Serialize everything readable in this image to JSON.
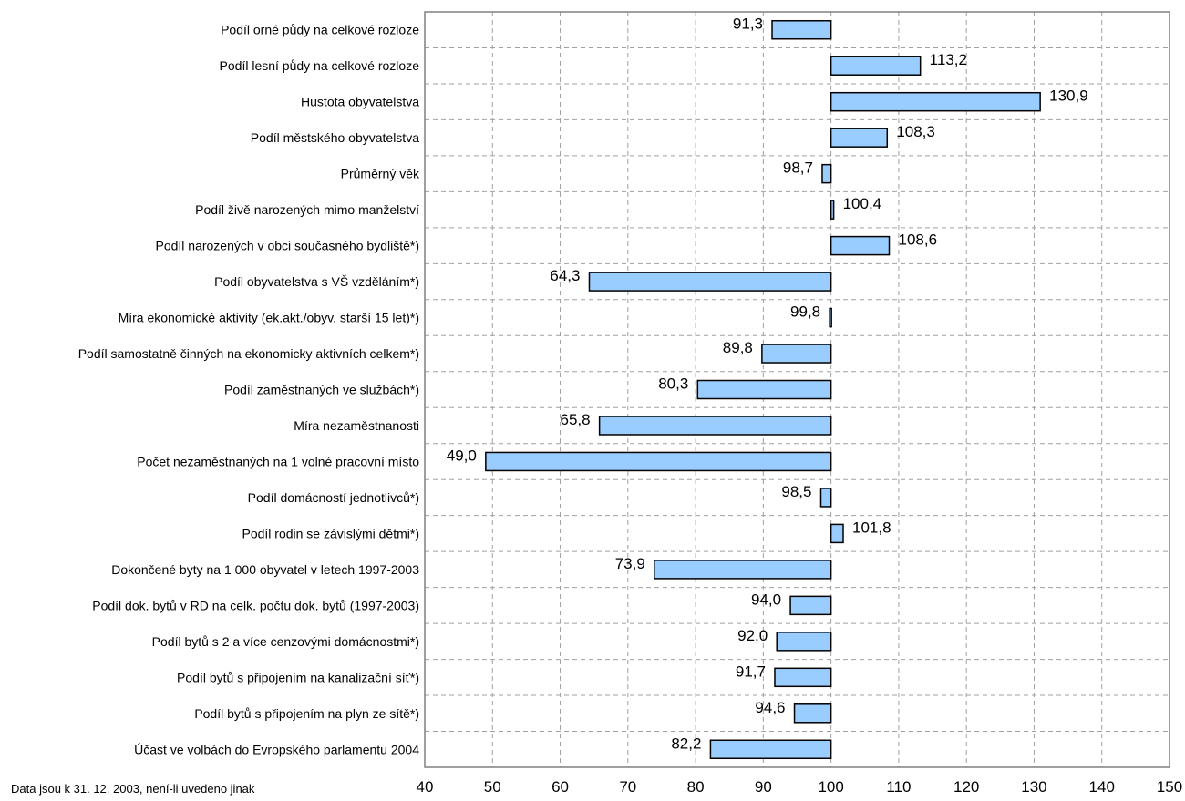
{
  "note": "Data jsou k 31. 12. 2003, není-li uvedeno jinak",
  "colors": {
    "bar_fill": "#99ccff",
    "bar_stroke": "#000000",
    "grid": "#a0a0a0",
    "frame": "#808080"
  },
  "chart_data": {
    "type": "bar",
    "orientation": "horizontal",
    "baseline": 100,
    "xlim": [
      40,
      150
    ],
    "xticks": [
      "40",
      "50",
      "60",
      "70",
      "80",
      "90",
      "100",
      "110",
      "120",
      "130",
      "140",
      "150"
    ],
    "grid": true,
    "categories": [
      "Podíl orné půdy na celkové rozloze",
      "Podíl lesní půdy na celkové rozloze",
      "Hustota obyvatelstva",
      "Podíl městského obyvatelstva",
      "Průměrný věk",
      "Podíl živě narozených mimo manželství",
      "Podíl narozených v obci současného bydliště*)",
      "Podíl obyvatelstva s VŠ vzděláním*)",
      "Míra ekonomické aktivity (ek.akt./obyv. starší 15 let)*)",
      "Podíl samostatně činných na ekonomicky aktivních celkem*)",
      "Podíl zaměstnaných ve službách*)",
      "Míra nezaměstnanosti",
      "Počet nezaměstnaných na 1 volné pracovní místo",
      "Podíl domácností jednotlivců*)",
      "Podíl rodin se závislými dětmi*)",
      "Dokončené byty na 1 000 obyvatel v letech 1997-2003",
      "Podíl dok. bytů v RD na celk. počtu dok. bytů (1997-2003)",
      "Podíl bytů s 2 a více cenzovými domácnostmi*)",
      "Podíl bytů s připojením na kanalizační síť*)",
      "Podíl bytů s připojením na plyn ze sítě*)",
      "Účast ve volbách do Evropského parlamentu 2004"
    ],
    "values": [
      91.3,
      113.2,
      130.9,
      108.3,
      98.7,
      100.4,
      108.6,
      64.3,
      99.8,
      89.8,
      80.3,
      65.8,
      49.0,
      98.5,
      101.8,
      73.9,
      94.0,
      92.0,
      91.7,
      94.6,
      82.2
    ],
    "value_labels": [
      "91,3",
      "113,2",
      "130,9",
      "108,3",
      "98,7",
      "100,4",
      "108,6",
      "64,3",
      "99,8",
      "89,8",
      "80,3",
      "65,8",
      "49,0",
      "98,5",
      "101,8",
      "73,9",
      "94,0",
      "92,0",
      "91,7",
      "94,6",
      "82,2"
    ]
  }
}
